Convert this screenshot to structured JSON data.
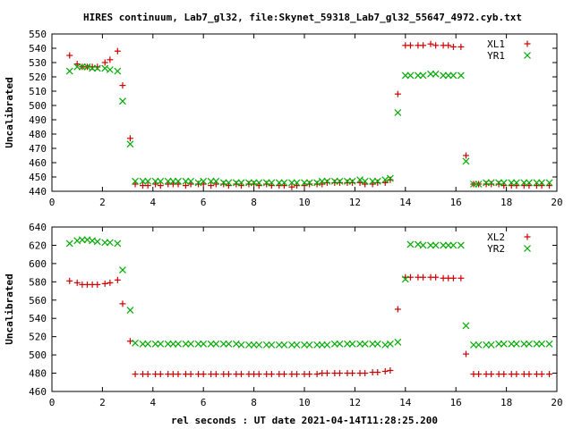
{
  "page": {
    "title": "HIRES continuum, Lab7_gl32, file:Skynet_59318_Lab7_gl32_55647_4972.cyb.txt"
  },
  "chart_data": [
    {
      "type": "scatter",
      "title": "HIRES continuum, Lab7_gl32, file:Skynet_59318_Lab7_gl32_55647_4972.cyb.txt",
      "xlabel": "",
      "ylabel": "Uncalibrated",
      "xlim": [
        0,
        20
      ],
      "ylim": [
        440,
        550
      ],
      "xticks": [
        0,
        2,
        4,
        6,
        8,
        10,
        12,
        14,
        16,
        18,
        20
      ],
      "yticks": [
        440,
        450,
        460,
        470,
        480,
        490,
        500,
        510,
        520,
        530,
        540,
        550
      ],
      "grid": false,
      "legend": "top-right",
      "series": [
        {
          "name": "XL1",
          "marker": "plus",
          "color": "#cc0000",
          "x": [
            0.7,
            1.0,
            1.2,
            1.4,
            1.6,
            1.8,
            2.1,
            2.3,
            2.6,
            2.8,
            3.1,
            3.3,
            3.6,
            3.8,
            4.1,
            4.3,
            4.6,
            4.8,
            5.0,
            5.3,
            5.5,
            5.8,
            6.0,
            6.3,
            6.5,
            6.8,
            7.0,
            7.3,
            7.5,
            7.8,
            8.0,
            8.2,
            8.5,
            8.7,
            9.0,
            9.2,
            9.5,
            9.7,
            10.0,
            10.2,
            10.5,
            10.7,
            10.9,
            11.2,
            11.4,
            11.7,
            11.9,
            12.2,
            12.4,
            12.7,
            12.9,
            13.2,
            13.4,
            13.7,
            14.0,
            14.2,
            14.5,
            14.7,
            15.0,
            15.2,
            15.5,
            15.7,
            15.9,
            16.2,
            16.4,
            16.7,
            16.9,
            17.2,
            17.4,
            17.7,
            17.9,
            18.2,
            18.4,
            18.7,
            18.9,
            19.2,
            19.4,
            19.7
          ],
          "y": [
            535,
            529,
            527,
            527,
            527,
            527,
            530,
            532,
            538,
            514,
            477,
            445,
            444,
            444,
            445,
            444,
            445,
            445,
            445,
            444,
            445,
            445,
            445,
            444,
            445,
            445,
            444,
            445,
            444,
            445,
            445,
            444,
            445,
            444,
            444,
            444,
            443,
            444,
            444,
            445,
            445,
            445,
            446,
            446,
            446,
            446,
            446,
            446,
            445,
            445,
            446,
            446,
            448,
            508,
            542,
            542,
            542,
            542,
            543,
            542,
            542,
            542,
            541,
            541,
            465,
            445,
            445,
            445,
            445,
            445,
            444,
            444,
            444,
            444,
            444,
            444,
            444,
            444
          ]
        },
        {
          "name": "YR1",
          "marker": "cross",
          "color": "#00aa00",
          "x": [
            0.7,
            1.0,
            1.2,
            1.4,
            1.6,
            1.8,
            2.1,
            2.3,
            2.6,
            2.8,
            3.1,
            3.3,
            3.6,
            3.8,
            4.1,
            4.3,
            4.6,
            4.8,
            5.0,
            5.3,
            5.5,
            5.8,
            6.0,
            6.3,
            6.5,
            6.8,
            7.0,
            7.3,
            7.5,
            7.8,
            8.0,
            8.2,
            8.5,
            8.7,
            9.0,
            9.2,
            9.5,
            9.7,
            10.0,
            10.2,
            10.5,
            10.7,
            10.9,
            11.2,
            11.4,
            11.7,
            11.9,
            12.2,
            12.4,
            12.7,
            12.9,
            13.2,
            13.4,
            13.7,
            14.0,
            14.2,
            14.5,
            14.7,
            15.0,
            15.2,
            15.5,
            15.7,
            15.9,
            16.2,
            16.4,
            16.7,
            16.9,
            17.2,
            17.4,
            17.7,
            17.9,
            18.2,
            18.4,
            18.7,
            18.9,
            19.2,
            19.4,
            19.7
          ],
          "y": [
            524,
            527,
            527,
            527,
            526,
            526,
            526,
            525,
            524,
            503,
            473,
            447,
            447,
            447,
            447,
            447,
            447,
            447,
            447,
            447,
            447,
            446,
            447,
            447,
            447,
            446,
            446,
            446,
            446,
            446,
            446,
            446,
            446,
            446,
            446,
            446,
            446,
            446,
            446,
            446,
            446,
            447,
            447,
            447,
            447,
            447,
            447,
            448,
            447,
            447,
            447,
            448,
            449,
            495,
            521,
            521,
            521,
            521,
            522,
            522,
            521,
            521,
            521,
            521,
            461,
            445,
            445,
            446,
            446,
            446,
            446,
            446,
            446,
            446,
            446,
            446,
            446,
            446
          ]
        }
      ]
    },
    {
      "type": "scatter",
      "title": "",
      "xlabel": "rel seconds : UT date 2021-04-14T11:28:25.200",
      "ylabel": "Uncalibrated",
      "xlim": [
        0,
        20
      ],
      "ylim": [
        460,
        640
      ],
      "xticks": [
        0,
        2,
        4,
        6,
        8,
        10,
        12,
        14,
        16,
        18,
        20
      ],
      "yticks": [
        460,
        480,
        500,
        520,
        540,
        560,
        580,
        600,
        620,
        640
      ],
      "grid": false,
      "legend": "top-right",
      "series": [
        {
          "name": "XL2",
          "marker": "plus",
          "color": "#cc0000",
          "x": [
            0.7,
            1.0,
            1.2,
            1.4,
            1.6,
            1.8,
            2.1,
            2.3,
            2.6,
            2.8,
            3.1,
            3.3,
            3.6,
            3.8,
            4.1,
            4.3,
            4.6,
            4.8,
            5.0,
            5.3,
            5.5,
            5.8,
            6.0,
            6.3,
            6.5,
            6.8,
            7.0,
            7.3,
            7.5,
            7.8,
            8.0,
            8.2,
            8.5,
            8.7,
            9.0,
            9.2,
            9.5,
            9.7,
            10.0,
            10.2,
            10.5,
            10.7,
            10.9,
            11.2,
            11.4,
            11.7,
            11.9,
            12.2,
            12.4,
            12.7,
            12.9,
            13.2,
            13.4,
            13.7,
            14.0,
            14.2,
            14.5,
            14.7,
            15.0,
            15.2,
            15.5,
            15.7,
            15.9,
            16.2,
            16.4,
            16.7,
            16.9,
            17.2,
            17.4,
            17.7,
            17.9,
            18.2,
            18.4,
            18.7,
            18.9,
            19.2,
            19.4,
            19.7
          ],
          "y": [
            581,
            579,
            577,
            577,
            577,
            577,
            578,
            579,
            582,
            556,
            515,
            479,
            479,
            479,
            479,
            479,
            479,
            479,
            479,
            479,
            479,
            479,
            479,
            479,
            479,
            479,
            479,
            479,
            479,
            479,
            479,
            479,
            479,
            479,
            479,
            479,
            479,
            479,
            479,
            479,
            479,
            480,
            480,
            480,
            480,
            480,
            480,
            480,
            480,
            481,
            481,
            482,
            483,
            550,
            585,
            585,
            585,
            585,
            585,
            585,
            584,
            584,
            584,
            584,
            501,
            479,
            479,
            479,
            479,
            479,
            479,
            479,
            479,
            479,
            479,
            479,
            479,
            479
          ]
        },
        {
          "name": "YR2",
          "marker": "cross",
          "color": "#00aa00",
          "x": [
            0.7,
            1.0,
            1.2,
            1.4,
            1.6,
            1.8,
            2.1,
            2.3,
            2.6,
            2.8,
            3.1,
            3.3,
            3.6,
            3.8,
            4.1,
            4.3,
            4.6,
            4.8,
            5.0,
            5.3,
            5.5,
            5.8,
            6.0,
            6.3,
            6.5,
            6.8,
            7.0,
            7.3,
            7.5,
            7.8,
            8.0,
            8.2,
            8.5,
            8.7,
            9.0,
            9.2,
            9.5,
            9.7,
            10.0,
            10.2,
            10.5,
            10.7,
            10.9,
            11.2,
            11.4,
            11.7,
            11.9,
            12.2,
            12.4,
            12.7,
            12.9,
            13.2,
            13.4,
            13.7,
            14.0,
            14.2,
            14.5,
            14.7,
            15.0,
            15.2,
            15.5,
            15.7,
            15.9,
            16.2,
            16.4,
            16.7,
            16.9,
            17.2,
            17.4,
            17.7,
            17.9,
            18.2,
            18.4,
            18.7,
            18.9,
            19.2,
            19.4,
            19.7
          ],
          "y": [
            622,
            625,
            626,
            626,
            625,
            624,
            623,
            623,
            622,
            593,
            549,
            513,
            512,
            512,
            512,
            512,
            512,
            512,
            512,
            512,
            512,
            512,
            512,
            512,
            512,
            512,
            512,
            512,
            511,
            511,
            511,
            511,
            511,
            511,
            511,
            511,
            511,
            511,
            511,
            511,
            511,
            511,
            511,
            512,
            512,
            512,
            512,
            512,
            512,
            512,
            512,
            511,
            512,
            514,
            583,
            621,
            621,
            620,
            620,
            620,
            620,
            620,
            620,
            620,
            532,
            511,
            511,
            511,
            511,
            512,
            512,
            512,
            512,
            512,
            512,
            512,
            512,
            512
          ]
        }
      ]
    }
  ]
}
